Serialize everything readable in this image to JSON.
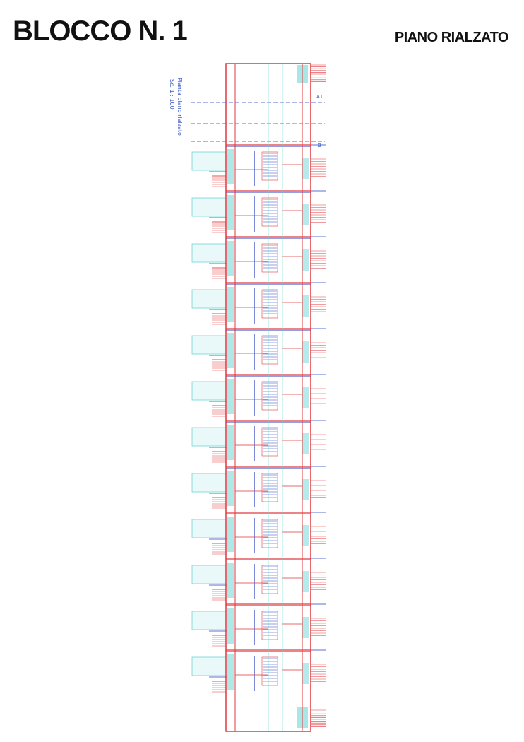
{
  "header": {
    "title": "BLOCCO N. 1",
    "subtitle": "PIANO RIALZATO"
  },
  "drawing": {
    "caption": [
      "Pianta piano rialzato",
      "Sc. 1 : 100"
    ],
    "section_marks": [
      "A1",
      "B"
    ]
  }
}
